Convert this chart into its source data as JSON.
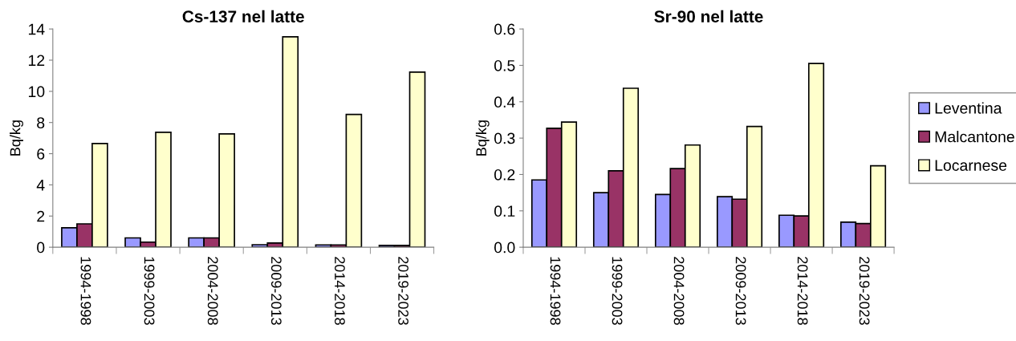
{
  "chart_data": [
    {
      "type": "bar",
      "title": "Cs-137 nel latte",
      "ylabel": "Bq/kg",
      "categories": [
        "1994-1998",
        "1999-2003",
        "2004-2008",
        "2009-2013",
        "2014-2018",
        "2019-2023"
      ],
      "series": [
        {
          "color": "#9999ff",
          "values": [
            1.25,
            0.6,
            0.6,
            0.16,
            0.15,
            0.12
          ]
        },
        {
          "color": "#993366",
          "values": [
            1.5,
            0.33,
            0.6,
            0.27,
            0.15,
            0.12
          ]
        },
        {
          "color": "#ffffcc",
          "values": [
            6.65,
            7.37,
            7.27,
            13.5,
            8.52,
            11.23
          ]
        }
      ],
      "ylim": [
        0,
        14
      ],
      "yticks": [
        0,
        2,
        4,
        6,
        8,
        10,
        12,
        14
      ],
      "grid": false,
      "legend": false
    },
    {
      "type": "bar",
      "title": "Sr-90 nel latte",
      "ylabel": "Bq/kg",
      "categories": [
        "1994-1998",
        "1999-2003",
        "2004-2008",
        "2009-2013",
        "2014-2018",
        "2019-2023"
      ],
      "series": [
        {
          "name": "Leventina",
          "color": "#9999ff",
          "values": [
            0.185,
            0.15,
            0.145,
            0.139,
            0.088,
            0.069
          ]
        },
        {
          "name": "Malcantone",
          "color": "#993366",
          "values": [
            0.327,
            0.21,
            0.216,
            0.132,
            0.086,
            0.065
          ]
        },
        {
          "name": "Locarnese",
          "color": "#ffffcc",
          "values": [
            0.344,
            0.437,
            0.281,
            0.332,
            0.505,
            0.224
          ]
        }
      ],
      "ylim": [
        0,
        0.6
      ],
      "yticks": [
        {
          "value": 0,
          "label": "0.0"
        },
        0.1,
        0.2,
        0.3,
        0.4,
        0.5,
        0.6
      ],
      "grid": false,
      "legend": "right"
    }
  ]
}
